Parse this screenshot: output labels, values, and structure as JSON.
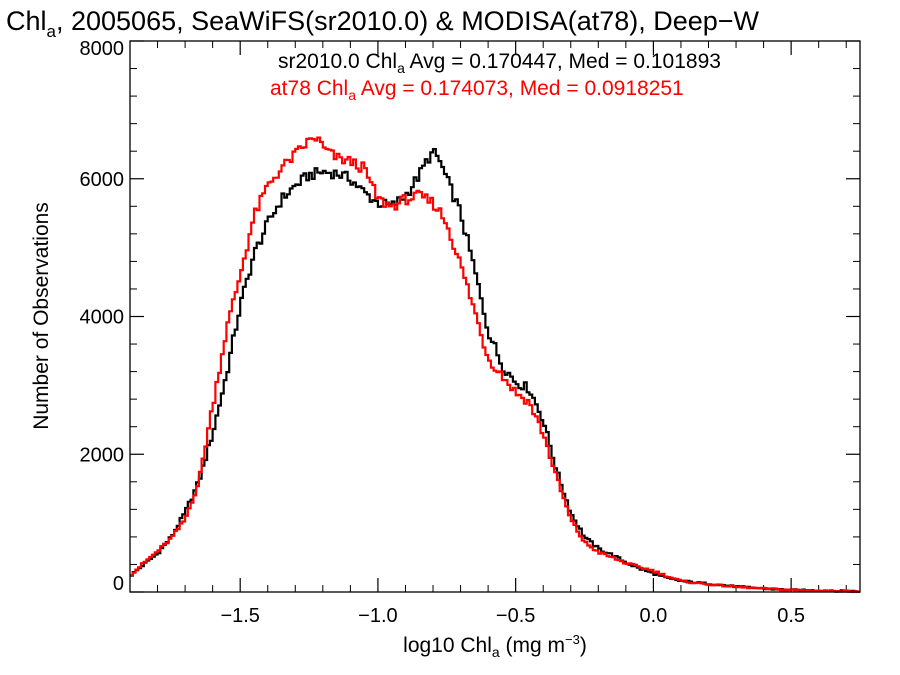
{
  "chart_data": {
    "type": "line",
    "title": {
      "pre": "Chl",
      "sub": "a",
      "post": ", 2005065, SeaWiFS(sr2010.0) & MODISA(at78), Deep−W"
    },
    "xlabel": {
      "pre": "log10 Chl",
      "sub": "a",
      "mid": " (mg m",
      "sup": "−3",
      "post": ")"
    },
    "ylabel": "Number of Observations",
    "xlim": [
      -1.9,
      0.75
    ],
    "ylim": [
      0,
      8000
    ],
    "x_ticks": [
      {
        "value": -1.5,
        "label": "−1.5"
      },
      {
        "value": -1.0,
        "label": "−1.0"
      },
      {
        "value": -0.5,
        "label": "−0.5"
      },
      {
        "value": 0.0,
        "label": "0.0"
      },
      {
        "value": 0.5,
        "label": "0.5"
      }
    ],
    "y_ticks": [
      {
        "value": 0,
        "label": "0"
      },
      {
        "value": 2000,
        "label": "2000"
      },
      {
        "value": 4000,
        "label": "4000"
      },
      {
        "value": 6000,
        "label": "6000"
      },
      {
        "value": 8000,
        "label": "8000"
      }
    ],
    "series": [
      {
        "color": "#000000",
        "annotation": {
          "pre": "sr2010.0 Chl",
          "sub": "a",
          "post": " Avg = 0.170447, Med = 0.101893"
        },
        "x": [
          -1.9,
          -1.85,
          -1.8,
          -1.75,
          -1.7,
          -1.65,
          -1.6,
          -1.55,
          -1.5,
          -1.45,
          -1.4,
          -1.35,
          -1.3,
          -1.25,
          -1.2,
          -1.15,
          -1.1,
          -1.05,
          -1.0,
          -0.95,
          -0.9,
          -0.85,
          -0.82,
          -0.8,
          -0.78,
          -0.75,
          -0.7,
          -0.65,
          -0.6,
          -0.55,
          -0.5,
          -0.45,
          -0.4,
          -0.35,
          -0.3,
          -0.25,
          -0.2,
          -0.15,
          -0.1,
          -0.05,
          0.0,
          0.05,
          0.1,
          0.2,
          0.3,
          0.4,
          0.5,
          0.6,
          0.75
        ],
        "values": [
          230,
          400,
          560,
          800,
          1150,
          1600,
          2300,
          3150,
          4150,
          4900,
          5350,
          5700,
          5900,
          6050,
          6100,
          6080,
          6000,
          5800,
          5650,
          5600,
          5750,
          6050,
          6280,
          6380,
          6300,
          6000,
          5500,
          4700,
          3800,
          3300,
          3050,
          2950,
          2500,
          1750,
          1150,
          800,
          630,
          540,
          430,
          340,
          270,
          200,
          160,
          120,
          80,
          50,
          30,
          20,
          10
        ]
      },
      {
        "color": "#ff0000",
        "annotation": {
          "pre": "at78 Chl",
          "sub": "a",
          "post": " Avg = 0.174073, Med = 0.0918251"
        },
        "x": [
          -1.9,
          -1.85,
          -1.8,
          -1.75,
          -1.7,
          -1.65,
          -1.6,
          -1.55,
          -1.5,
          -1.45,
          -1.4,
          -1.35,
          -1.3,
          -1.25,
          -1.22,
          -1.2,
          -1.15,
          -1.1,
          -1.05,
          -1.0,
          -0.95,
          -0.9,
          -0.85,
          -0.8,
          -0.78,
          -0.75,
          -0.7,
          -0.65,
          -0.6,
          -0.55,
          -0.5,
          -0.45,
          -0.4,
          -0.35,
          -0.3,
          -0.25,
          -0.2,
          -0.15,
          -0.1,
          -0.05,
          0.0,
          0.05,
          0.1,
          0.2,
          0.3,
          0.4,
          0.5,
          0.6,
          0.75
        ],
        "values": [
          240,
          420,
          590,
          780,
          1050,
          1600,
          2700,
          3800,
          4600,
          5450,
          5900,
          6150,
          6350,
          6550,
          6600,
          6450,
          6300,
          6250,
          6150,
          5700,
          5600,
          5700,
          5750,
          5650,
          5550,
          5350,
          4750,
          4100,
          3400,
          3150,
          2900,
          2750,
          2300,
          1650,
          1050,
          720,
          580,
          500,
          420,
          360,
          310,
          230,
          160,
          110,
          75,
          50,
          30,
          20,
          10
        ]
      }
    ]
  }
}
